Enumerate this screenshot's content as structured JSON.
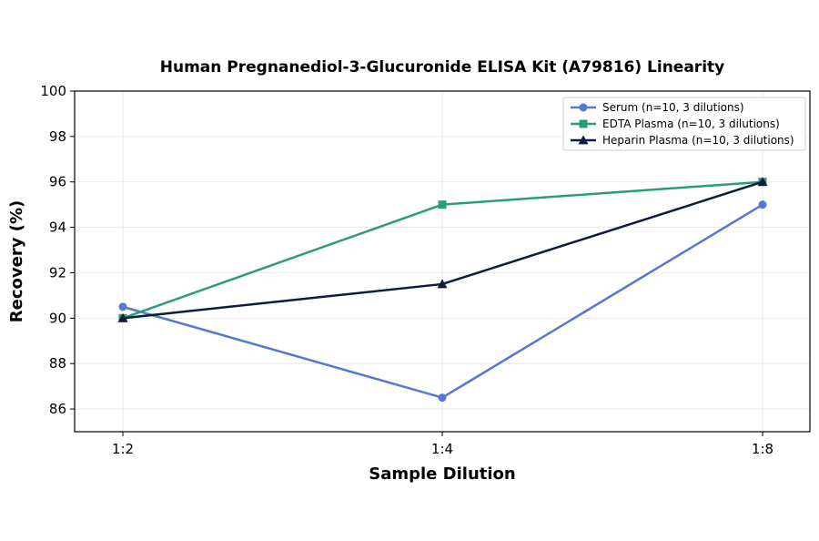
{
  "chart_data": {
    "type": "line",
    "title": "Human Pregnanediol-3-Glucuronide ELISA Kit (A79816) Linearity",
    "xlabel": "Sample Dilution",
    "ylabel": "Recovery (%)",
    "categories": [
      "1:2",
      "1:4",
      "1:8"
    ],
    "ylim": [
      85,
      100
    ],
    "yticks": [
      86,
      88,
      90,
      92,
      94,
      96,
      98,
      100
    ],
    "grid": true,
    "legend_position": "top-right",
    "series": [
      {
        "name": "Serum (n=10, 3 dilutions)",
        "values": [
          90.5,
          86.5,
          95.0
        ],
        "color": "#5577d6",
        "marker": "circle"
      },
      {
        "name": "EDTA Plasma (n=10, 3 dilutions)",
        "values": [
          90.0,
          95.0,
          96.0
        ],
        "color": "#2a9d78",
        "marker": "square"
      },
      {
        "name": "Heparin Plasma (n=10, 3 dilutions)",
        "values": [
          90.0,
          91.5,
          96.0
        ],
        "color": "#0e1c3d",
        "marker": "triangle"
      }
    ]
  }
}
